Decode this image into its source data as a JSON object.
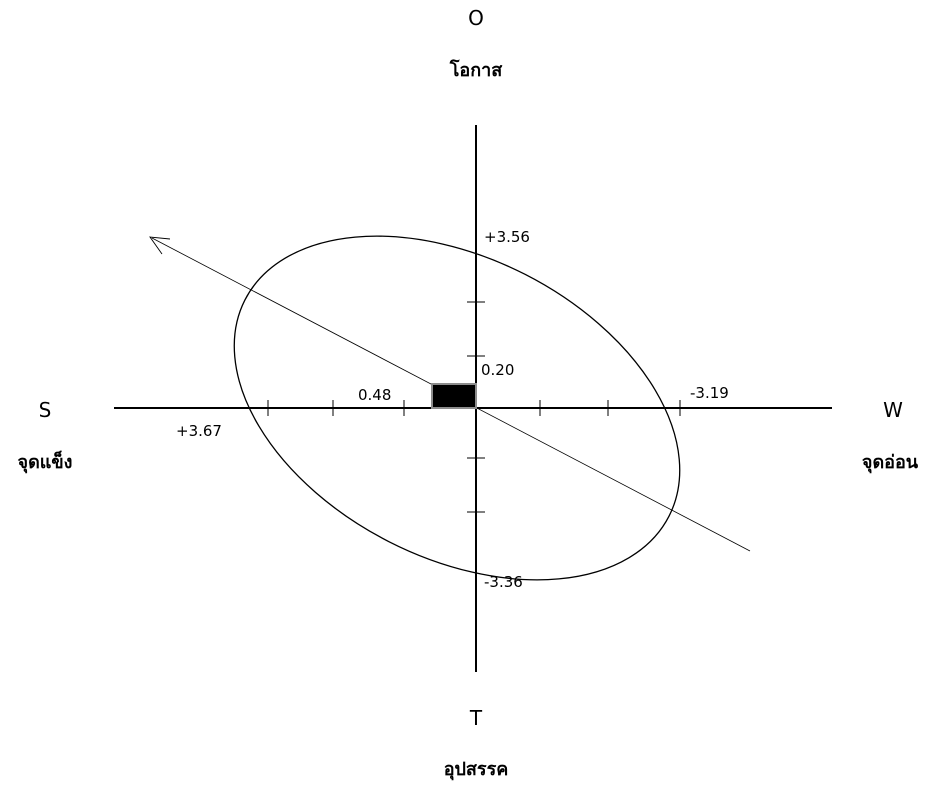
{
  "quadrants": {
    "top": {
      "letter": "O",
      "label": "โอกาส"
    },
    "bottom": {
      "letter": "T",
      "label": "อุปสรรค"
    },
    "left": {
      "letter": "S",
      "label": "จุดแข็ง"
    },
    "right": {
      "letter": "W",
      "label": "จุดอ่อน"
    }
  },
  "values": {
    "y_positive": "+3.56",
    "y_negative": "-3.36",
    "x_left": "+3.67",
    "x_right": "-3.19",
    "center_x": "0.48",
    "center_y": "0.20"
  },
  "colors": {
    "stroke": "#000000",
    "center_fill": "#000000",
    "center_outline": "#8c8c8c"
  }
}
